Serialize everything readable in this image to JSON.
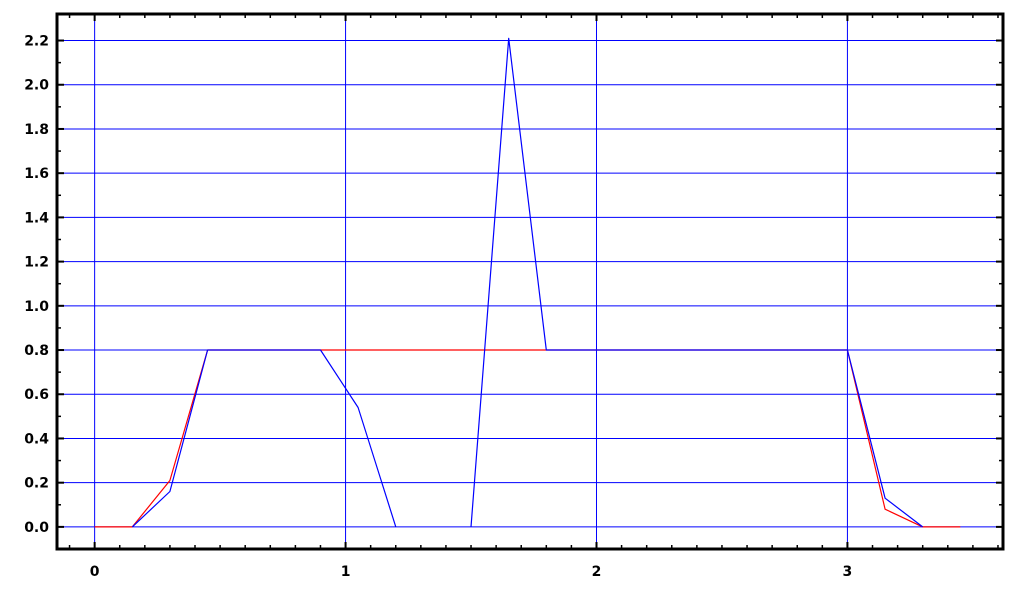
{
  "chart_data": {
    "type": "line",
    "title": "",
    "xlabel": "",
    "ylabel": "",
    "xlim": [
      -0.15,
      3.62
    ],
    "ylim": [
      -0.1,
      2.32
    ],
    "xticks": [
      0,
      1,
      2,
      3
    ],
    "xtick_labels": [
      "0",
      "1",
      "2",
      "3"
    ],
    "yticks": [
      0.0,
      0.2,
      0.4,
      0.6,
      0.8,
      1.0,
      1.2,
      1.4,
      1.6,
      1.8,
      2.0,
      2.2
    ],
    "ytick_labels": [
      "0.0",
      "0.2",
      "0.4",
      "0.6",
      "0.8",
      "1.0",
      "1.2",
      "1.4",
      "1.6",
      "1.8",
      "2.0",
      "2.2"
    ],
    "grid": true,
    "colors": {
      "grid": "#0000ff",
      "axes": "#000000",
      "background": "#ffffff"
    },
    "series": [
      {
        "color": "#ff0000",
        "points": [
          [
            0,
            0
          ],
          [
            0.15,
            0
          ],
          [
            0.3,
            0.21
          ],
          [
            0.45,
            0.8
          ],
          [
            3.0,
            0.8
          ],
          [
            3.15,
            0.08
          ],
          [
            3.3,
            0
          ],
          [
            3.45,
            0
          ]
        ]
      },
      {
        "color": "#0000ff",
        "segments": [
          [
            [
              0.15,
              0
            ],
            [
              0.3,
              0.16
            ],
            [
              0.45,
              0.8
            ],
            [
              0.9,
              0.8
            ],
            [
              1.05,
              0.54
            ],
            [
              1.2,
              0
            ]
          ],
          [
            [
              1.5,
              0
            ],
            [
              1.65,
              2.21
            ],
            [
              1.8,
              0.8
            ],
            [
              3.0,
              0.8
            ],
            [
              3.15,
              0.13
            ],
            [
              3.3,
              0
            ]
          ]
        ]
      }
    ]
  }
}
